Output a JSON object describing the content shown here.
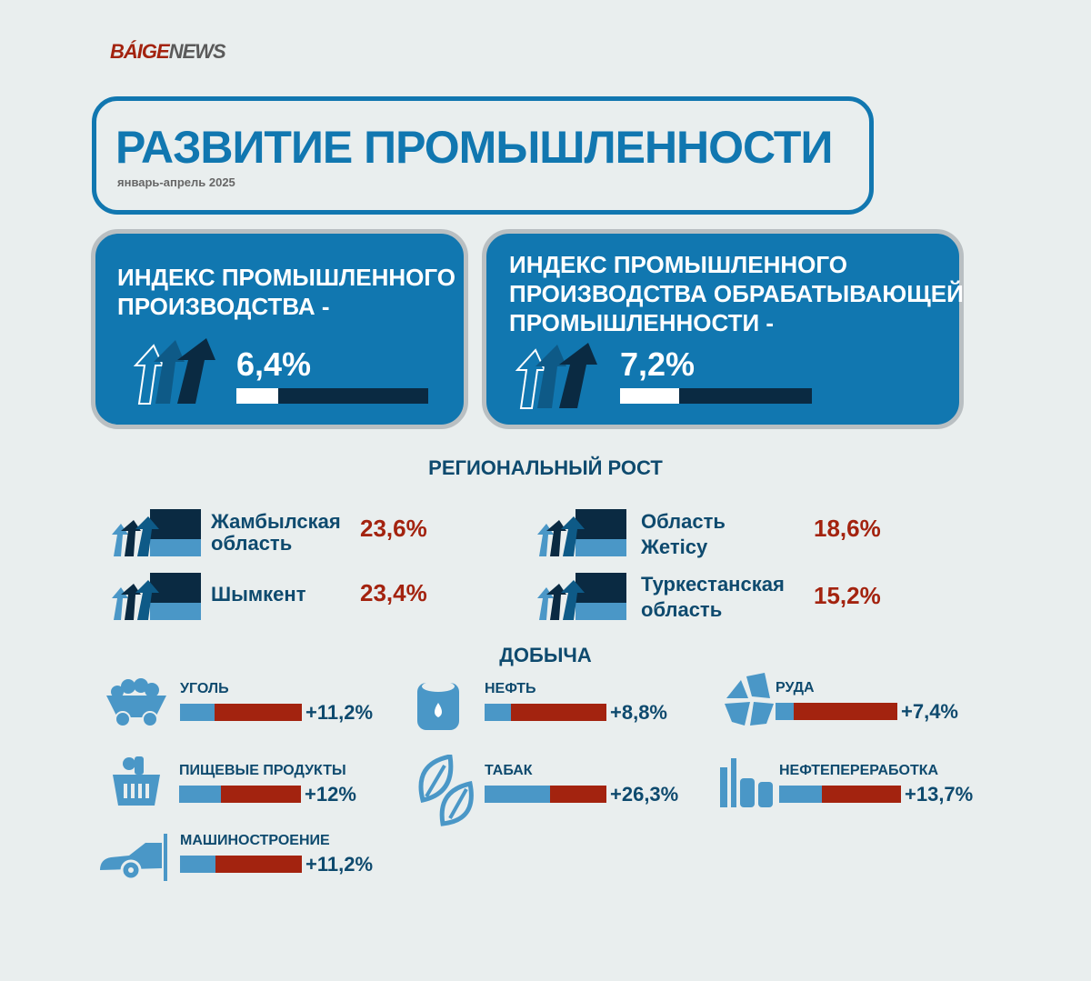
{
  "logo": {
    "part1": "BÁIGE",
    "part2": "NEWS"
  },
  "header": {
    "title": "РАЗВИТИЕ ПРОМЫШЛЕННОСТИ",
    "period": "январь-апрель 2025"
  },
  "cards": [
    {
      "line1": "ИНДЕКС ПРОМЫШЛЕННОГО",
      "line2": "ПРОИЗВОДСТВА -",
      "value": "6,4%",
      "fill_pct": 22
    },
    {
      "line1": "ИНДЕКС ПРОМЫШЛЕННОГО",
      "line2": "ПРОИЗВОДСТВА ОБРАБАТЫВАЮЩЕЙ",
      "line3": "ПРОМЫШЛЕННОСТИ -",
      "value": "7,2%",
      "fill_pct": 31
    }
  ],
  "regional": {
    "title": "РЕГИОНАЛЬНЫЙ РОСТ",
    "items": [
      {
        "line1": "Жамбылская",
        "line2": "область",
        "value": "23,6%"
      },
      {
        "line1": "Шымкент",
        "line2": "",
        "value": "23,4%"
      },
      {
        "line1": "Область",
        "line2": "Жетісу",
        "value": "18,6%"
      },
      {
        "line1": "Туркестанская",
        "line2": "область",
        "value": "15,2%"
      }
    ]
  },
  "mining": {
    "title": "ДОБЫЧА",
    "items": [
      {
        "label": "УГОЛЬ",
        "value": "+11,2%",
        "icon": "coal-cart-icon",
        "blue_pct": 28
      },
      {
        "label": "НЕФТЬ",
        "value": "+8,8%",
        "icon": "oil-barrel-icon",
        "blue_pct": 22
      },
      {
        "label": "РУДА",
        "value": "+7,4%",
        "icon": "ore-icon",
        "blue_pct": 15
      },
      {
        "label": "ПИЩЕВЫЕ ПРОДУКТЫ",
        "value": "+12%",
        "icon": "food-basket-icon",
        "blue_pct": 34
      },
      {
        "label": "ТАБАК",
        "value": "+26,3%",
        "icon": "tobacco-leaf-icon",
        "blue_pct": 54
      },
      {
        "label": "НЕФТЕПЕРЕРАБОТКА",
        "value": "+13,7%",
        "icon": "refinery-icon",
        "blue_pct": 35
      },
      {
        "label": "МАШИНОСТРОЕНИЕ",
        "value": "+11,2%",
        "icon": "car-icon",
        "blue_pct": 29
      }
    ]
  },
  "colors": {
    "blue": "#1177b0",
    "dark": "#0a2a42",
    "red": "#a3230f",
    "light": "#4a97c7"
  }
}
